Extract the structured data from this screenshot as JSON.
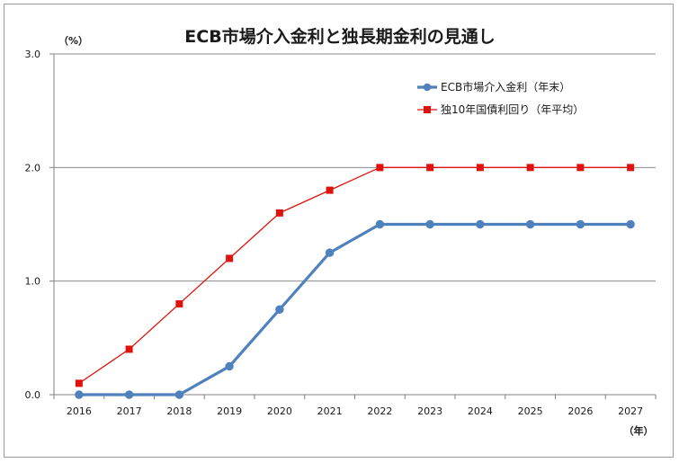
{
  "chart_data": {
    "type": "line",
    "title": "ECB市場介入金利と独長期金利の見通し",
    "ylabel": "（%）",
    "xlabel": "（年）",
    "categories": [
      "2016",
      "2017",
      "2018",
      "2019",
      "2020",
      "2021",
      "2022",
      "2023",
      "2024",
      "2025",
      "2026",
      "2027"
    ],
    "ylim": [
      0,
      3.0
    ],
    "y_ticks": [
      "0.0",
      "1.0",
      "2.0",
      "3.0"
    ],
    "grid": "horizontal",
    "legend_position": "top-right",
    "series": [
      {
        "name": "ECB市場介入金利（年末）",
        "color": "#4f81bd",
        "marker": "circle",
        "values": [
          0,
          0,
          0,
          0.25,
          0.75,
          1.25,
          1.5,
          1.5,
          1.5,
          1.5,
          1.5,
          1.5
        ]
      },
      {
        "name": "独10年国債利回り（年平均）",
        "color": "#e0120c",
        "marker": "square",
        "values": [
          0.1,
          0.4,
          0.8,
          1.2,
          1.6,
          1.8,
          2.0,
          2.0,
          2.0,
          2.0,
          2.0,
          2.0
        ]
      }
    ]
  }
}
